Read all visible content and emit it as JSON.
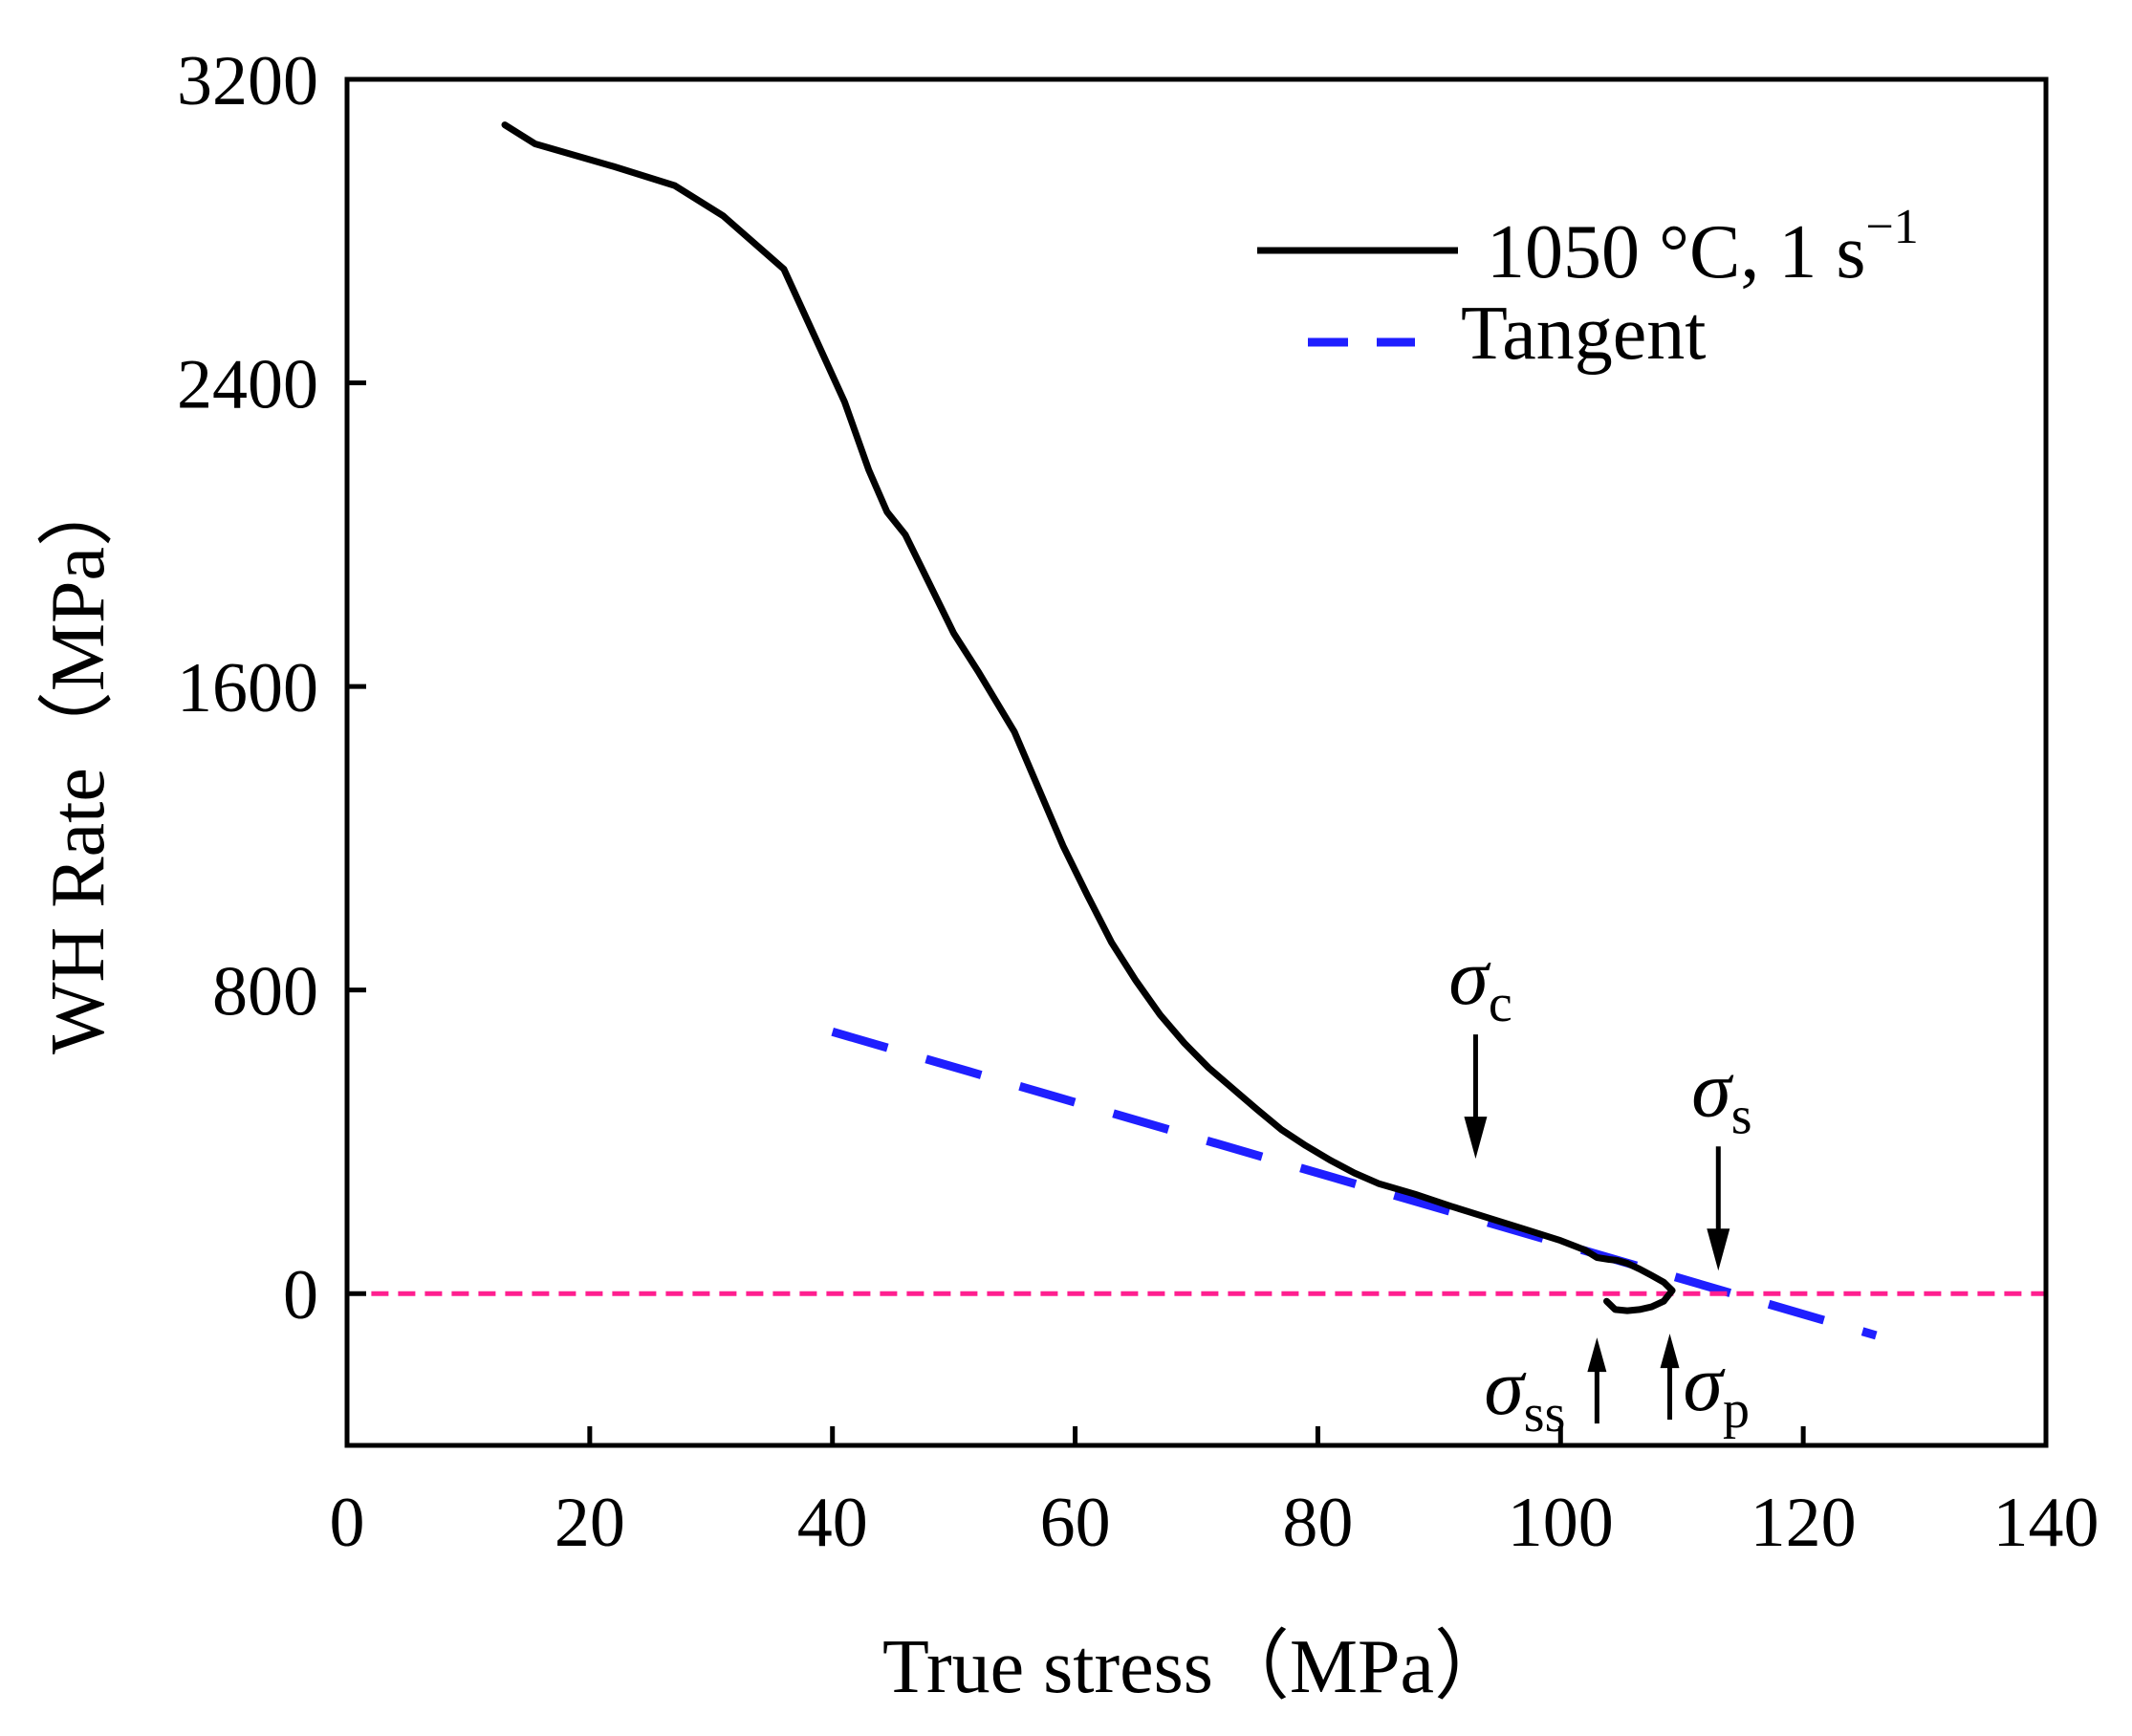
{
  "chart_data": {
    "type": "line",
    "title": "",
    "xlabel": "True stress（MPa）",
    "ylabel": "WH Rate（MPa）",
    "xlim": [
      0,
      140
    ],
    "ylim": [
      -400,
      3200
    ],
    "x_ticks": [
      0,
      20,
      40,
      60,
      80,
      100,
      120,
      140
    ],
    "y_ticks": [
      0,
      800,
      1600,
      2400,
      3200
    ],
    "x_tick_labels": [
      "0",
      "20",
      "40",
      "60",
      "80",
      "100",
      "120",
      "140"
    ],
    "y_tick_labels": [
      "0",
      "800",
      "1600",
      "2400",
      "3200"
    ],
    "grid": false,
    "legend_position": "top-right",
    "series": [
      {
        "name": "1050 °C, 1 s",
        "name_superscript": "−1",
        "style": "solid",
        "color": "#000000",
        "x": [
          13,
          15.5,
          22,
          27,
          31,
          36,
          38,
          41,
          43,
          44.5,
          46,
          48,
          50,
          52,
          55,
          57,
          59,
          61,
          63,
          65,
          67,
          69,
          71,
          73,
          75,
          77,
          79,
          81,
          83,
          85,
          88,
          91,
          94,
          97,
          100,
          102,
          103,
          104,
          104.6,
          105.5,
          106.5,
          107.5,
          108.5,
          109.2,
          108.5,
          107.5,
          106.5,
          105.5,
          104.5,
          103.8
        ],
        "y": [
          3080,
          3030,
          2970,
          2920,
          2840,
          2700,
          2560,
          2350,
          2170,
          2060,
          2000,
          1870,
          1740,
          1640,
          1480,
          1330,
          1180,
          1050,
          925,
          825,
          735,
          660,
          595,
          540,
          485,
          432,
          390,
          352,
          318,
          290,
          262,
          230,
          200,
          170,
          140,
          115,
          95,
          90,
          88,
          80,
          65,
          48,
          30,
          8,
          -20,
          -35,
          -42,
          -45,
          -42,
          -20
        ]
      },
      {
        "name": "Tangent",
        "style": "dashed",
        "color": "#1f1fff",
        "x": [
          40,
          126
        ],
        "y": [
          690,
          -110
        ]
      },
      {
        "name": "zero line",
        "style": "dotted",
        "color": "#ff1f8f",
        "x": [
          2,
          140
        ],
        "y": [
          0,
          0
        ]
      }
    ],
    "annotations": [
      {
        "symbol": "σ",
        "subscript": "c",
        "x": 93,
        "y": 310,
        "arrow": "down"
      },
      {
        "symbol": "σ",
        "subscript": "s",
        "x": 113,
        "y": 15,
        "arrow": "down"
      },
      {
        "symbol": "σ",
        "subscript": "ss",
        "x": 103,
        "y": -40,
        "arrow": "up"
      },
      {
        "symbol": "σ",
        "subscript": "p",
        "x": 109,
        "y": -30,
        "arrow": "up"
      }
    ]
  }
}
